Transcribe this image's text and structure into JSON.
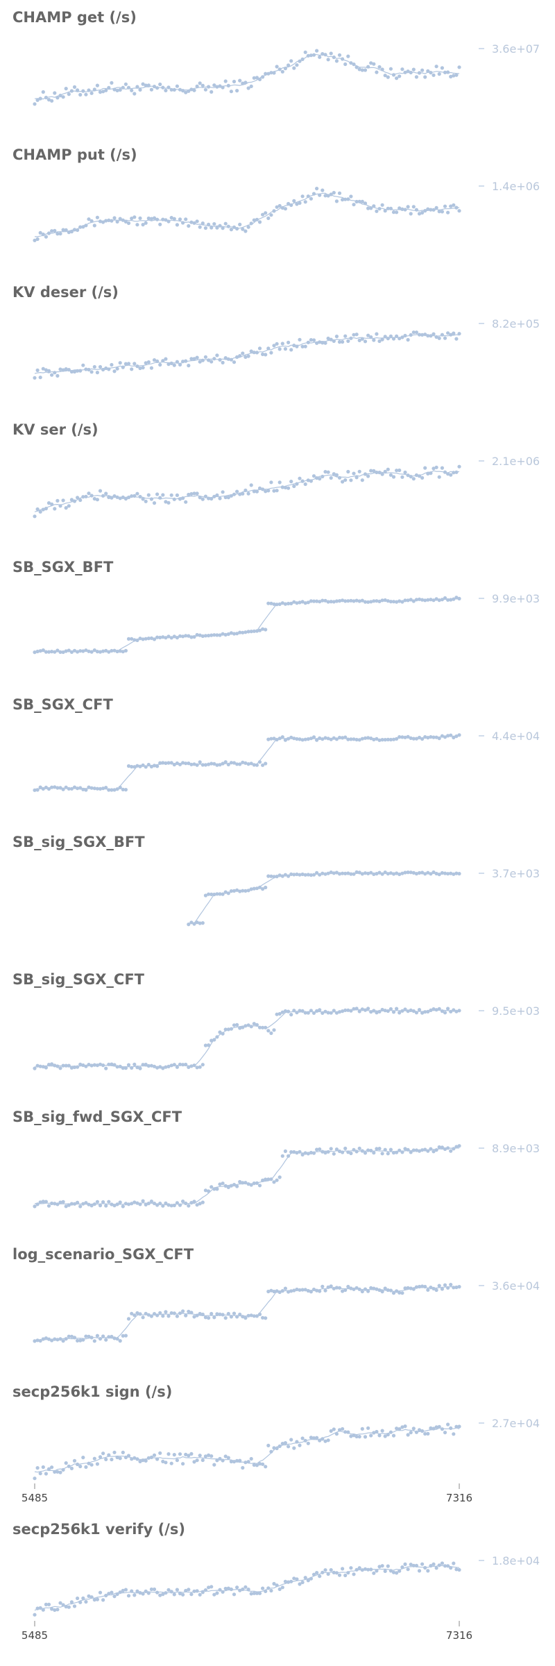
{
  "colors": {
    "series": "#b0c4de",
    "title": "#666666",
    "axis_label": "#b9c7db",
    "tick_label": "#444444"
  },
  "chart_data": [
    {
      "type": "scatter",
      "title": "CHAMP get (/s)",
      "ytick_label": "3.6e+07",
      "segments": [
        [
          0.1,
          0.3,
          0.25,
          0.35
        ],
        [
          0.35,
          0.95,
          0.55,
          0.6
        ],
        [
          0.98,
          0.98,
          0.97,
          0.95
        ]
      ],
      "steps": [
        0.5
      ],
      "noise": 0.1
    },
    {
      "type": "scatter",
      "title": "CHAMP put (/s)",
      "ytick_label": "1.4e+06",
      "segments": [
        [
          0.1,
          0.4,
          0.35,
          0.25
        ],
        [
          0.3,
          0.9,
          0.55,
          0.6
        ],
        [
          0.95,
          0.95,
          0.95,
          1.0
        ]
      ],
      "steps": [
        0.5
      ],
      "noise": 0.08
    },
    {
      "type": "scatter",
      "title": "KV deser (/s)",
      "ytick_label": "8.2e+05",
      "segments": [
        [
          0.1,
          0.2,
          0.3,
          0.4
        ],
        [
          0.45,
          0.7,
          0.75,
          0.8
        ],
        [
          0.85,
          0.95,
          0.9,
          0.85
        ]
      ],
      "steps": [
        0.5
      ],
      "noise": 0.08
    },
    {
      "type": "scatter",
      "title": "KV ser (/s)",
      "ytick_label": "2.1e+06",
      "segments": [
        [
          0.1,
          0.4,
          0.3,
          0.4
        ],
        [
          0.45,
          0.7,
          0.75,
          0.8
        ],
        [
          0.85,
          0.95,
          0.9,
          0.85
        ]
      ],
      "steps": [
        0.5
      ],
      "noise": 0.1
    },
    {
      "type": "scatter",
      "title": "SB_SGX_BFT",
      "ytick_label": "9.9e+03",
      "segments": [
        [
          0.05,
          0.05,
          0.05,
          0.05
        ],
        [
          0.25,
          0.3,
          0.35,
          0.45
        ],
        [
          0.9,
          0.95,
          0.95,
          1.0
        ]
      ],
      "steps": [
        0.22,
        0.55
      ],
      "noise": 0.02
    },
    {
      "type": "scatter",
      "title": "SB_SGX_CFT",
      "ytick_label": "4.4e+04",
      "segments": [
        [
          0.05,
          0.05,
          0.05,
          0.05
        ],
        [
          0.45,
          0.5,
          0.5,
          0.5
        ],
        [
          0.95,
          0.95,
          0.95,
          1.0
        ]
      ],
      "steps": [
        0.22,
        0.55
      ],
      "noise": 0.03
    },
    {
      "type": "scatter",
      "title": "SB_sig_SGX_BFT",
      "ytick_label": "3.7e+03",
      "segments": [
        [
          0.1,
          0.1,
          0.1,
          0.1
        ],
        [
          0.6,
          0.65,
          0.7,
          0.75
        ],
        [
          0.95,
          1.0,
          1.0,
          1.0
        ]
      ],
      "steps": [
        0.4,
        0.55
      ],
      "start": 0.36,
      "noise": 0.02
    },
    {
      "type": "scatter",
      "title": "SB_sig_SGX_CFT",
      "ytick_label": "9.5e+03",
      "segments": [
        [
          0.0,
          0.0,
          0.0,
          0.0
        ],
        [
          0.35,
          0.7,
          0.75,
          0.6
        ],
        [
          0.95,
          1.0,
          1.0,
          1.0
        ]
      ],
      "steps": [
        0.4,
        0.57
      ],
      "noise": 0.04
    },
    {
      "type": "scatter",
      "title": "SB_sig_fwd_SGX_CFT",
      "ytick_label": "8.9e+03",
      "segments": [
        [
          0.0,
          0.0,
          0.0,
          0.0
        ],
        [
          0.25,
          0.35,
          0.35,
          0.45
        ],
        [
          0.9,
          0.95,
          0.95,
          1.0
        ]
      ],
      "steps": [
        0.4,
        0.58
      ],
      "noise": 0.05
    },
    {
      "type": "scatter",
      "title": "log_scenario_SGX_CFT",
      "ytick_label": "3.6e+04",
      "segments": [
        [
          0.05,
          0.05,
          0.05,
          0.05
        ],
        [
          0.45,
          0.5,
          0.45,
          0.45
        ],
        [
          0.9,
          0.95,
          0.9,
          1.0
        ]
      ],
      "steps": [
        0.22,
        0.55
      ],
      "noise": 0.05
    },
    {
      "type": "scatter",
      "title": "secp256k1 sign (/s)",
      "ytick_label": "2.7e+04",
      "segments": [
        [
          0.1,
          0.4,
          0.35,
          0.25
        ],
        [
          0.5,
          0.8,
          0.85,
          0.9
        ],
        [
          0.9,
          0.95,
          0.9,
          0.95
        ]
      ],
      "steps": [
        0.55
      ],
      "noise": 0.1
    },
    {
      "type": "scatter",
      "title": "secp256k1 verify (/s)",
      "ytick_label": "1.8e+04",
      "segments": [
        [
          0.1,
          0.4,
          0.45,
          0.45
        ],
        [
          0.5,
          0.8,
          0.85,
          0.9
        ],
        [
          0.9,
          0.95,
          0.9,
          0.95
        ]
      ],
      "steps": [
        0.55
      ],
      "noise": 0.08
    }
  ],
  "xaxis": {
    "tick_labels": [
      "5485",
      "7316"
    ]
  }
}
